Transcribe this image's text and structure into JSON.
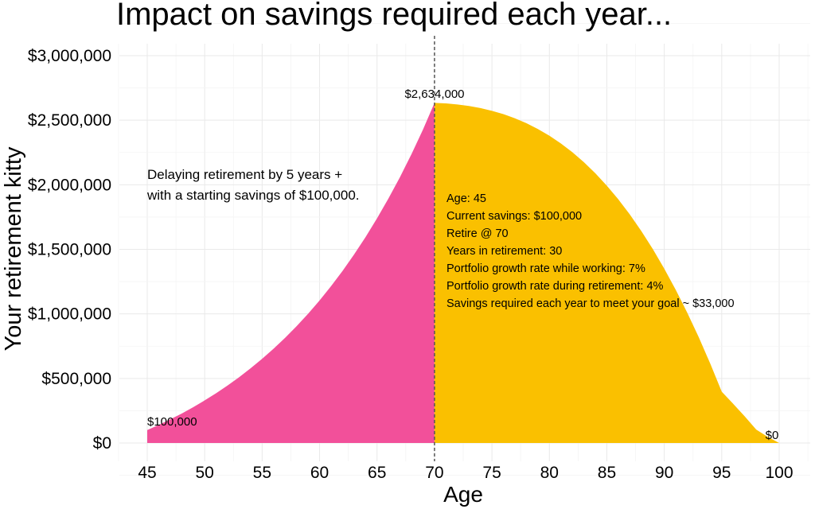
{
  "chart_data": {
    "type": "area",
    "title": "Impact on savings required each year...",
    "xlabel": "Age",
    "ylabel": "Your retirement kitty",
    "xlim": [
      45,
      100
    ],
    "ylim": [
      0,
      3000000
    ],
    "x_ticks": [
      "45",
      "50",
      "55",
      "60",
      "65",
      "70",
      "75",
      "80",
      "85",
      "90",
      "95",
      "100"
    ],
    "y_ticks": [
      "$0",
      "$500,000",
      "$1,000,000",
      "$1,500,000",
      "$2,000,000",
      "$2,500,000",
      "$3,000,000"
    ],
    "grid": true,
    "retire_age": 70,
    "series": [
      {
        "color": "#F2509A",
        "x": [
          45,
          46,
          47,
          48,
          49,
          50,
          51,
          52,
          53,
          54,
          55,
          56,
          57,
          58,
          59,
          60,
          61,
          62,
          63,
          64,
          65,
          66,
          67,
          68,
          69,
          70
        ],
        "y": [
          100000,
          140000,
          183000,
          228000,
          277000,
          330000,
          386000,
          446000,
          510000,
          579000,
          652000,
          731000,
          815000,
          905000,
          1001000,
          1104000,
          1215000,
          1333000,
          1460000,
          1595000,
          1740000,
          1895000,
          2060000,
          2238000,
          2428000,
          2634000
        ]
      },
      {
        "color": "#FAC000",
        "x": [
          70,
          71,
          72,
          73,
          74,
          75,
          76,
          77,
          78,
          79,
          80,
          81,
          82,
          83,
          84,
          85,
          86,
          87,
          88,
          89,
          90,
          91,
          92,
          93,
          94,
          95,
          96,
          97,
          98,
          99,
          100
        ],
        "y": [
          2634000,
          2630000,
          2622000,
          2610000,
          2594000,
          2573000,
          2547000,
          2515000,
          2477000,
          2432000,
          2380000,
          2320000,
          2252000,
          2175000,
          2089000,
          1993000,
          1887000,
          1770000,
          1642000,
          1502000,
          1350000,
          1186000,
          1009000,
          819000,
          615000,
          397000,
          303000,
          206000,
          104000,
          48000,
          0
        ]
      }
    ],
    "annotations": {
      "start": "$100,000",
      "peak": "$2,634,000",
      "end": "$0"
    },
    "note_lines": [
      "Delaying retirement by 5 years +",
      "with a starting savings of $100,000."
    ],
    "info_lines": [
      "Age: 45",
      "Current savings: $100,000",
      "Retire @ 70",
      "Years in retirement: 30",
      "Portfolio growth rate while working: 7%",
      "Portfolio growth rate during retirement: 4%",
      "Savings required each year to meet your goal ~ $33,000"
    ]
  }
}
